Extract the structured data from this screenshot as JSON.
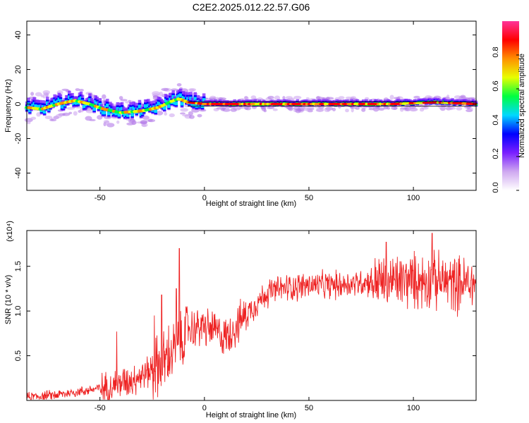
{
  "title": "C2E2.2025.012.22.57.G06",
  "chart_data": [
    {
      "type": "heatmap",
      "xlabel": "Height of straight line (km)",
      "ylabel": "Frequency (Hz)",
      "xlim": [
        -85,
        130
      ],
      "ylim": [
        -50,
        48
      ],
      "xticks": [
        -50,
        0,
        50,
        100
      ],
      "yticks": [
        -40,
        -20,
        0,
        20,
        40
      ],
      "grid": false,
      "ridge": {
        "x": [
          -85,
          -78,
          -70,
          -62,
          -55,
          -48,
          -40,
          -30,
          -22,
          -15,
          -12,
          -8,
          0,
          20,
          60,
          90,
          110,
          130
        ],
        "freq_hz": [
          -2,
          -3,
          0,
          2,
          0,
          -3,
          -5,
          -4,
          -2,
          2,
          3,
          1,
          0,
          0,
          0,
          0,
          1,
          0
        ]
      },
      "colorbar": {
        "label": "Normalized spectral amplitude",
        "ticks": [
          0.0,
          0.2,
          0.4,
          0.6,
          0.8
        ],
        "tick_labels": [
          "0.0",
          "0.2",
          "0.4",
          "0.6",
          "0.8"
        ],
        "range": [
          0,
          1
        ],
        "colors": [
          "#ffffff",
          "#cfa8f0",
          "#7a1fff",
          "#0000ff",
          "#00d8ff",
          "#00ff40",
          "#e8ff00",
          "#ff9000",
          "#ff0000",
          "#ff3399"
        ]
      }
    },
    {
      "type": "line",
      "xlabel": "Height of straight line (km)",
      "ylabel": "SNR (10 * v/v)",
      "y_multiplier_label": "(x10⁴)",
      "xlim": [
        -85,
        130
      ],
      "ylim": [
        0,
        1.9
      ],
      "xticks": [
        -50,
        0,
        50,
        100
      ],
      "yticks": [
        0.5,
        1.0,
        1.5
      ],
      "ytick_labels": [
        "0.5",
        "1.0",
        "1.5"
      ],
      "grid": false,
      "series": [
        {
          "color": "#ee2222",
          "trend": {
            "x": [
              -85,
              -70,
              -55,
              -45,
              -35,
              -28,
              -20,
              -15,
              -12,
              -8,
              0,
              5,
              10,
              15,
              20,
              25,
              30,
              40,
              50,
              60,
              70,
              80,
              90,
              100,
              110,
              120,
              130
            ],
            "y": [
              0.04,
              0.07,
              0.12,
              0.17,
              0.25,
              0.32,
              0.45,
              0.58,
              0.62,
              0.82,
              0.84,
              0.8,
              0.72,
              0.85,
              0.98,
              1.1,
              1.22,
              1.28,
              1.3,
              1.3,
              1.32,
              1.35,
              1.36,
              1.37,
              1.37,
              1.34,
              1.33
            ]
          },
          "peaks": [
            {
              "x": -12,
              "y": 1.7
            },
            {
              "x": -13.5,
              "y": 1.25
            },
            {
              "x": -20.5,
              "y": 1.18
            },
            {
              "x": -24,
              "y": 0.95
            },
            {
              "x": -42,
              "y": 0.77
            },
            {
              "x": 109,
              "y": 1.87
            },
            {
              "x": 87,
              "y": 1.77
            }
          ]
        }
      ]
    }
  ]
}
